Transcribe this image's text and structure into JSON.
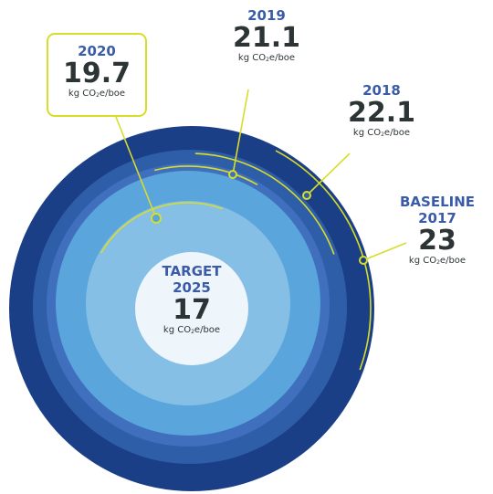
{
  "chart_data": {
    "type": "concentric-circles",
    "unit": "kg CO2e/boe",
    "accent_color": "#d8dd2a",
    "label_color": "#3a5ba8",
    "points": [
      {
        "label_lines": [
          "BASELINE",
          "2017"
        ],
        "value": 23,
        "value_text": "23",
        "color": "#1b3f86"
      },
      {
        "label_lines": [
          "2018"
        ],
        "value": 22.1,
        "value_text": "22.1",
        "color": "#2f5ea9"
      },
      {
        "label_lines": [
          "2019"
        ],
        "value": 21.1,
        "value_text": "21.1",
        "color": "#3f6fbd"
      },
      {
        "label_lines": [
          "2020"
        ],
        "value": 19.7,
        "value_text": "19.7",
        "color": "#5aa5dc"
      },
      {
        "label_lines": [
          "TARGET",
          "2025"
        ],
        "value": 17,
        "value_text": "17",
        "color": "#eef6fc"
      }
    ],
    "unit_parts": {
      "pre": "kg CO",
      "sub": "2",
      "post": "e/boe"
    }
  }
}
